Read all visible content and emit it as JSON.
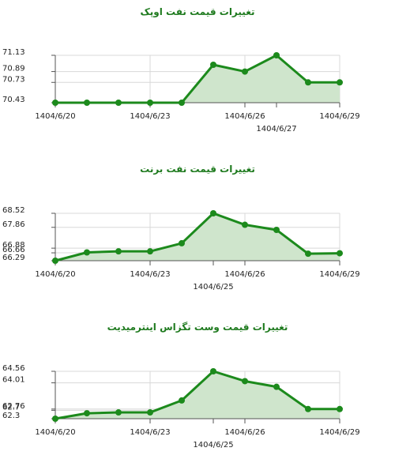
{
  "colors": {
    "line": "#1c8a1c",
    "fill": "#cfe5cc",
    "title": "#1e7a1e",
    "grid": "#d8d8d8",
    "axis": "#555555",
    "text": "#222222"
  },
  "chart_data": [
    {
      "type": "area",
      "title": "تغییرات قیمت نفت اوپک",
      "xlabel": "",
      "ylabel": "",
      "x_tick_labels": [
        {
          "index": 0,
          "label": "1404/6/20"
        },
        {
          "index": 3,
          "label": "1404/6/23"
        },
        {
          "index": 6,
          "label": "1404/6/26"
        },
        {
          "index": 7,
          "label": "1404/6/27"
        },
        {
          "index": 9,
          "label": "1404/6/29"
        }
      ],
      "y_tick_labels": [
        "71.13",
        "70.89",
        "70.73",
        "70.43"
      ],
      "ylim": [
        70.43,
        71.13
      ],
      "grid": true,
      "legend": "none",
      "values": [
        70.43,
        70.43,
        70.43,
        70.43,
        70.43,
        70.99,
        70.89,
        71.13,
        70.73,
        70.73
      ]
    },
    {
      "type": "area",
      "title": "تغییرات قیمت نفت برنت",
      "xlabel": "",
      "ylabel": "",
      "x_tick_labels": [
        {
          "index": 0,
          "label": "1404/6/20"
        },
        {
          "index": 3,
          "label": "1404/6/23"
        },
        {
          "index": 5,
          "label": "1404/6/25"
        },
        {
          "index": 6,
          "label": "1404/6/26"
        },
        {
          "index": 9,
          "label": "1404/6/29"
        }
      ],
      "y_tick_labels": [
        "68.52",
        "67.86",
        "66.88",
        "66.66",
        "66.29"
      ],
      "ylim": [
        66.29,
        68.52
      ],
      "grid": true,
      "legend": "none",
      "values": [
        66.29,
        66.68,
        66.73,
        66.73,
        67.11,
        68.52,
        67.98,
        67.74,
        66.62,
        66.64
      ]
    },
    {
      "type": "area",
      "title": "تغییرات قیمت وست تگزاس اینترمیدیت",
      "xlabel": "",
      "ylabel": "",
      "x_tick_labels": [
        {
          "index": 0,
          "label": "1404/6/20"
        },
        {
          "index": 3,
          "label": "1404/6/23"
        },
        {
          "index": 5,
          "label": "1404/6/25"
        },
        {
          "index": 6,
          "label": "1404/6/26"
        },
        {
          "index": 9,
          "label": "1404/6/29"
        }
      ],
      "y_tick_labels": [
        "64.56",
        "64.01",
        "62.76",
        "62.7",
        "62.3"
      ],
      "ylim": [
        62.3,
        64.56
      ],
      "grid": true,
      "legend": "none",
      "values": [
        62.3,
        62.56,
        62.6,
        62.6,
        63.17,
        64.56,
        64.09,
        63.82,
        62.76,
        62.76
      ]
    }
  ]
}
